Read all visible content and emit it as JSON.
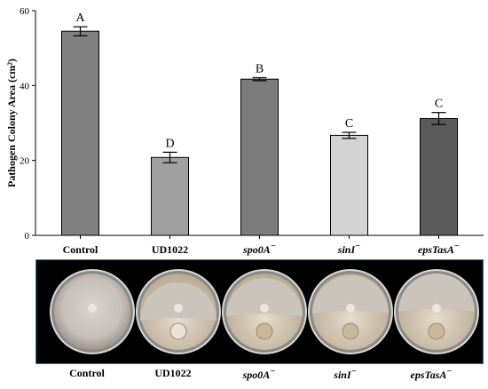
{
  "chart_data": {
    "type": "bar",
    "ylabel": "Pathogen Colony Area (cm²)",
    "ylim": [
      0,
      60
    ],
    "yticks": [
      0,
      20,
      40,
      60
    ],
    "grid": false,
    "categories": [
      "Control",
      "UD1022",
      "spo0A",
      "sinI",
      "epsTasA"
    ],
    "category_superscript": [
      "",
      "",
      "−",
      "−",
      "−"
    ],
    "category_italic": [
      false,
      false,
      true,
      true,
      true
    ],
    "values": [
      54.5,
      20.8,
      41.7,
      26.7,
      31.2
    ],
    "errors": [
      1.2,
      1.4,
      0.4,
      0.8,
      1.6
    ],
    "significance": [
      "A",
      "D",
      "B",
      "C",
      "C"
    ],
    "bar_colors": [
      "#808080",
      "#a0a0a0",
      "#7d7d7d",
      "#d3d3d3",
      "#5a5a5a"
    ]
  },
  "photo_strip": {
    "labels": [
      "Control",
      "UD1022",
      "spo0A",
      "sinI",
      "epsTasA"
    ],
    "superscript": [
      "",
      "",
      "−",
      "−",
      "−"
    ],
    "italic": [
      false,
      false,
      true,
      true,
      true
    ]
  }
}
